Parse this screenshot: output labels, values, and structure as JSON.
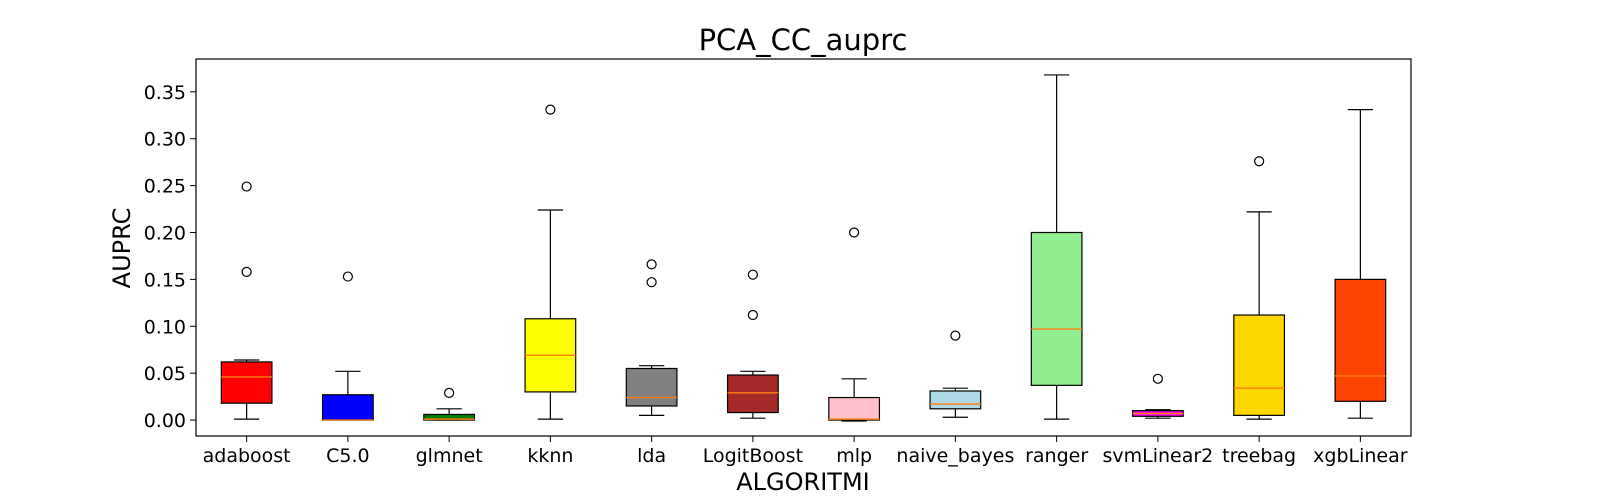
{
  "chart_data": {
    "type": "box",
    "title": "PCA_CC_auprc",
    "xlabel": "ALGORITMI",
    "ylabel": "AUPRC",
    "ylim": [
      -0.017,
      0.385
    ],
    "yticks": [
      "0.00",
      "0.05",
      "0.10",
      "0.15",
      "0.20",
      "0.25",
      "0.30",
      "0.35"
    ],
    "grid": false,
    "median_color": "#ff7f0e",
    "categories": [
      "adaboost",
      "C5.0",
      "glmnet",
      "kknn",
      "lda",
      "LogitBoost",
      "mlp",
      "naive_bayes",
      "ranger",
      "svmLinear2",
      "treebag",
      "xgbLinear"
    ],
    "boxes": [
      {
        "name": "adaboost",
        "color": "#ff0000",
        "whislo": 0.001,
        "q1": 0.018,
        "med": 0.046,
        "q3": 0.062,
        "whishi": 0.064,
        "fliers": [
          0.158,
          0.249
        ]
      },
      {
        "name": "C5.0",
        "color": "#0000ff",
        "whislo": 0.0,
        "q1": 0.0,
        "med": 0.0,
        "q3": 0.027,
        "whishi": 0.052,
        "fliers": [
          0.153
        ]
      },
      {
        "name": "glmnet",
        "color": "#008000",
        "whislo": 0.0,
        "q1": 0.0,
        "med": 0.001,
        "q3": 0.006,
        "whishi": 0.012,
        "fliers": [
          0.029
        ]
      },
      {
        "name": "kknn",
        "color": "#ffff00",
        "whislo": 0.001,
        "q1": 0.03,
        "med": 0.069,
        "q3": 0.108,
        "whishi": 0.224,
        "fliers": [
          0.331
        ]
      },
      {
        "name": "lda",
        "color": "#808080",
        "whislo": 0.005,
        "q1": 0.015,
        "med": 0.024,
        "q3": 0.055,
        "whishi": 0.058,
        "fliers": [
          0.147,
          0.166
        ]
      },
      {
        "name": "LogitBoost",
        "color": "#a52a2a",
        "whislo": 0.002,
        "q1": 0.008,
        "med": 0.029,
        "q3": 0.048,
        "whishi": 0.052,
        "fliers": [
          0.112,
          0.155
        ]
      },
      {
        "name": "mlp",
        "color": "#ffc0cb",
        "whislo": -0.001,
        "q1": 0.0,
        "med": 0.001,
        "q3": 0.024,
        "whishi": 0.044,
        "fliers": [
          0.2
        ]
      },
      {
        "name": "naive_bayes",
        "color": "#add8e6",
        "whislo": 0.003,
        "q1": 0.012,
        "med": 0.017,
        "q3": 0.031,
        "whishi": 0.034,
        "fliers": [
          0.09
        ]
      },
      {
        "name": "ranger",
        "color": "#90ee90",
        "whislo": 0.001,
        "q1": 0.037,
        "med": 0.097,
        "q3": 0.2,
        "whishi": 0.368,
        "fliers": []
      },
      {
        "name": "svmLinear2",
        "color": "#ff00ff",
        "whislo": 0.002,
        "q1": 0.004,
        "med": 0.007,
        "q3": 0.01,
        "whishi": 0.011,
        "fliers": [
          0.044
        ]
      },
      {
        "name": "treebag",
        "color": "#ffd700",
        "whislo": 0.001,
        "q1": 0.005,
        "med": 0.034,
        "q3": 0.112,
        "whishi": 0.222,
        "fliers": [
          0.276
        ]
      },
      {
        "name": "xgbLinear",
        "color": "#ff4500",
        "whislo": 0.002,
        "q1": 0.02,
        "med": 0.047,
        "q3": 0.15,
        "whishi": 0.331,
        "fliers": []
      }
    ]
  }
}
